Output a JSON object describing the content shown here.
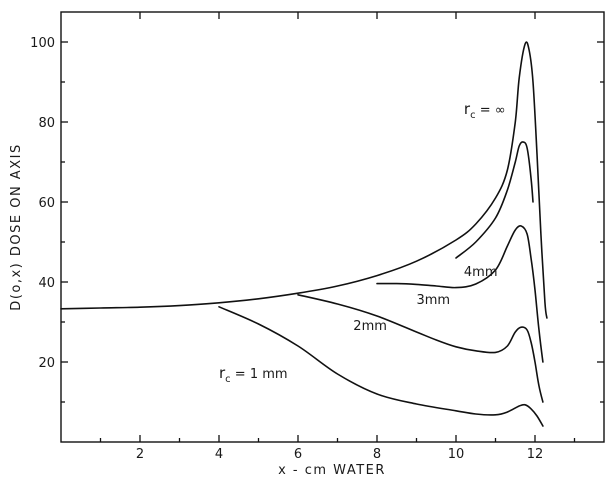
{
  "chart_data": {
    "type": "line",
    "xlabel": "x -  cm WATER",
    "ylabel": "D(o,x)  DOSE ON AXIS",
    "xlim": [
      0,
      14
    ],
    "ylim": [
      0,
      110
    ],
    "x_ticks": [
      2,
      4,
      6,
      8,
      10,
      12
    ],
    "y_ticks": [
      20,
      40,
      60,
      80,
      100
    ],
    "grid": false,
    "legend": "none",
    "series": [
      {
        "name": "r_c = ∞",
        "points": [
          [
            0,
            33.3
          ],
          [
            1,
            33.5
          ],
          [
            2,
            33.7
          ],
          [
            3,
            34.1
          ],
          [
            4,
            34.8
          ],
          [
            5,
            35.8
          ],
          [
            6,
            37.2
          ],
          [
            7,
            39.0
          ],
          [
            8,
            41.6
          ],
          [
            9,
            45.2
          ],
          [
            10,
            50.5
          ],
          [
            10.5,
            54.5
          ],
          [
            11,
            61
          ],
          [
            11.3,
            68
          ],
          [
            11.5,
            80
          ],
          [
            11.6,
            91
          ],
          [
            11.75,
            99.5
          ],
          [
            11.85,
            98
          ],
          [
            11.95,
            90
          ],
          [
            12.05,
            72
          ],
          [
            12.15,
            52
          ],
          [
            12.25,
            35
          ],
          [
            12.3,
            31
          ]
        ]
      },
      {
        "name": "4mm",
        "points": [
          [
            10,
            46
          ],
          [
            10.5,
            50
          ],
          [
            11,
            56
          ],
          [
            11.3,
            63
          ],
          [
            11.5,
            70
          ],
          [
            11.6,
            74
          ],
          [
            11.7,
            75
          ],
          [
            11.8,
            73.5
          ],
          [
            11.9,
            66
          ],
          [
            11.95,
            60
          ]
        ]
      },
      {
        "name": "3mm",
        "points": [
          [
            8,
            39.6
          ],
          [
            8.5,
            39.6
          ],
          [
            9,
            39.4
          ],
          [
            9.5,
            39.0
          ],
          [
            10,
            38.6
          ],
          [
            10.5,
            39.5
          ],
          [
            11,
            43
          ],
          [
            11.3,
            49
          ],
          [
            11.5,
            53
          ],
          [
            11.65,
            54
          ],
          [
            11.8,
            52
          ],
          [
            11.9,
            46
          ],
          [
            12.0,
            38
          ],
          [
            12.1,
            28
          ],
          [
            12.2,
            20
          ]
        ]
      },
      {
        "name": "2mm",
        "points": [
          [
            6,
            36.8
          ],
          [
            7,
            34.5
          ],
          [
            8,
            31.5
          ],
          [
            9,
            27.5
          ],
          [
            9.5,
            25.5
          ],
          [
            10,
            23.8
          ],
          [
            10.5,
            22.8
          ],
          [
            11,
            22.4
          ],
          [
            11.3,
            24
          ],
          [
            11.5,
            27.5
          ],
          [
            11.65,
            28.7
          ],
          [
            11.8,
            28
          ],
          [
            11.9,
            25
          ],
          [
            12.0,
            20
          ],
          [
            12.1,
            14
          ],
          [
            12.2,
            10
          ]
        ]
      },
      {
        "name": "r_c = 1 mm",
        "points": [
          [
            4,
            33.8
          ],
          [
            5,
            29.5
          ],
          [
            6,
            24
          ],
          [
            7,
            17
          ],
          [
            8,
            12
          ],
          [
            9,
            9.5
          ],
          [
            10,
            7.8
          ],
          [
            10.5,
            7.0
          ],
          [
            11,
            6.8
          ],
          [
            11.3,
            7.5
          ],
          [
            11.6,
            9.0
          ],
          [
            11.75,
            9.3
          ],
          [
            11.9,
            8.3
          ],
          [
            12.05,
            6.5
          ],
          [
            12.2,
            4.0
          ]
        ]
      }
    ],
    "annotations": [
      {
        "text": "r",
        "sub": "c",
        "rest": " = ∞",
        "at": [
          10.2,
          82
        ]
      },
      {
        "text": "4mm",
        "at": [
          10.2,
          41.5
        ]
      },
      {
        "text": "3mm",
        "at": [
          9.0,
          34.5
        ]
      },
      {
        "text": "2mm",
        "at": [
          7.4,
          28
        ]
      },
      {
        "text": "r",
        "sub": "c",
        "rest": " = 1 mm",
        "at": [
          4.0,
          16
        ]
      }
    ]
  }
}
